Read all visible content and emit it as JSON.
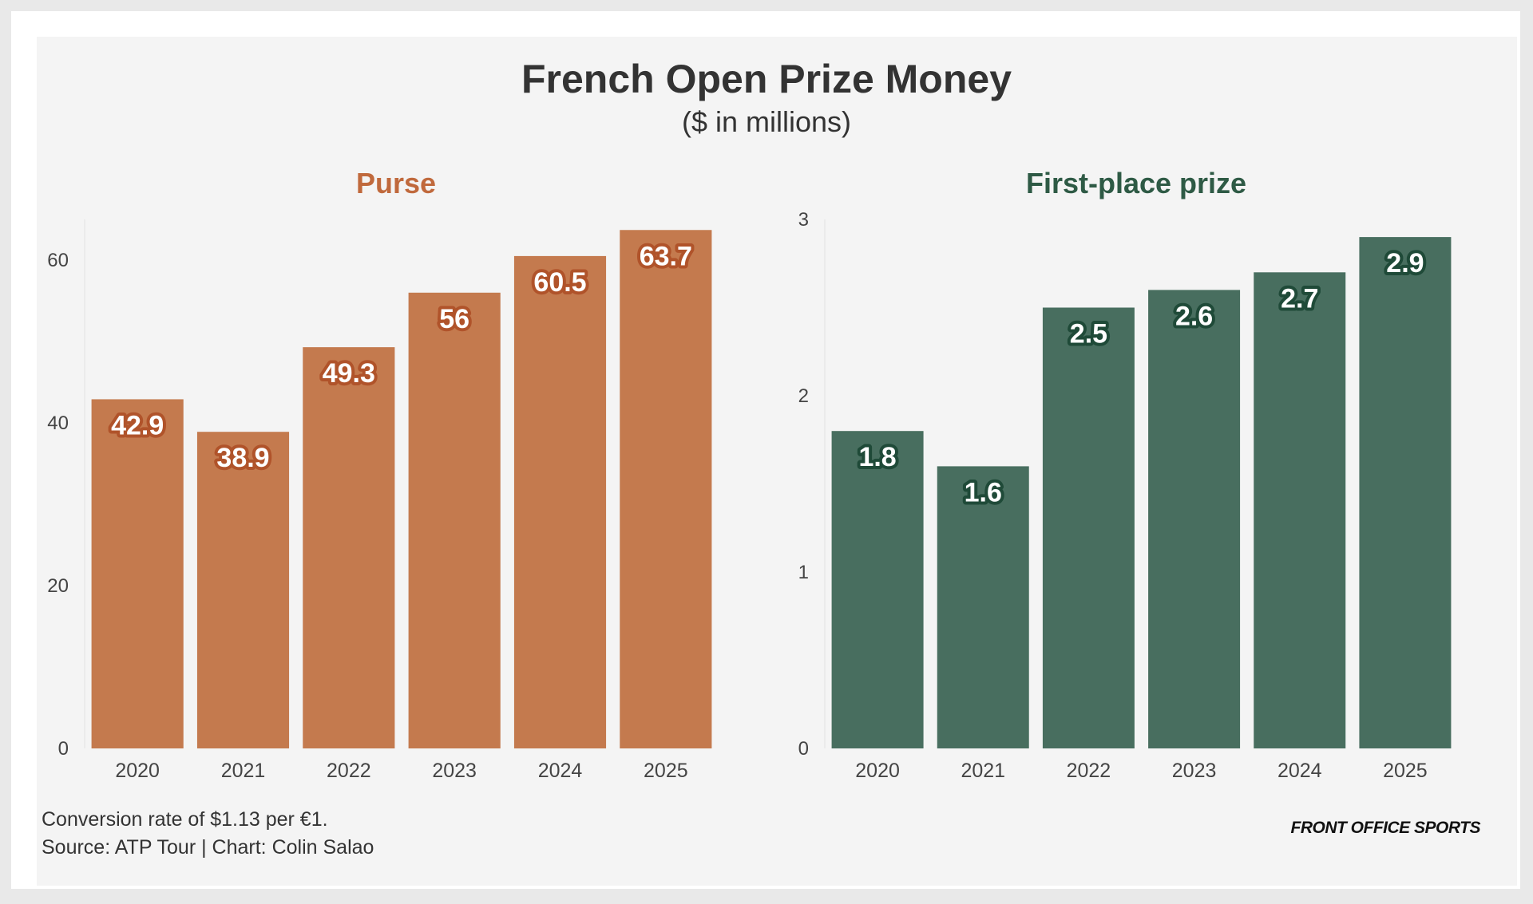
{
  "header": {
    "title": "French Open Prize Money",
    "subtitle": "($ in millions)"
  },
  "footer": {
    "note": "Conversion rate of $1.13 per €1.",
    "source": "Source: ATP Tour | Chart: Colin Salao",
    "brand": "FRONT OFFICE SPORTS"
  },
  "colors": {
    "background": "#f4f4f4",
    "purse_bar": "#c47a4e",
    "purse_label_outline": "#b0532a",
    "purse_title": "#c0693c",
    "prize_bar": "#486e5f",
    "prize_label_outline": "#1f4a38",
    "prize_title": "#2e5a45"
  },
  "chart_data": [
    {
      "type": "bar",
      "title": "Purse",
      "categories": [
        "2020",
        "2021",
        "2022",
        "2023",
        "2024",
        "2025"
      ],
      "values": [
        42.9,
        38.9,
        49.3,
        56,
        60.5,
        63.7
      ],
      "value_labels": [
        "42.9",
        "38.9",
        "49.3",
        "56",
        "60.5",
        "63.7"
      ],
      "ylim": [
        0,
        65
      ],
      "yticks": [
        0,
        20,
        40,
        60
      ],
      "ytick_labels": [
        "0",
        "20",
        "40",
        "60"
      ],
      "xlabel": "",
      "ylabel": "",
      "grid": false
    },
    {
      "type": "bar",
      "title": "First-place prize",
      "categories": [
        "2020",
        "2021",
        "2022",
        "2023",
        "2024",
        "2025"
      ],
      "values": [
        1.8,
        1.6,
        2.5,
        2.6,
        2.7,
        2.9
      ],
      "value_labels": [
        "1.8",
        "1.6",
        "2.5",
        "2.6",
        "2.7",
        "2.9"
      ],
      "ylim": [
        0,
        3
      ],
      "yticks": [
        0,
        1,
        2,
        3
      ],
      "ytick_labels": [
        "0",
        "1",
        "2",
        "3"
      ],
      "xlabel": "",
      "ylabel": "",
      "grid": false
    }
  ]
}
